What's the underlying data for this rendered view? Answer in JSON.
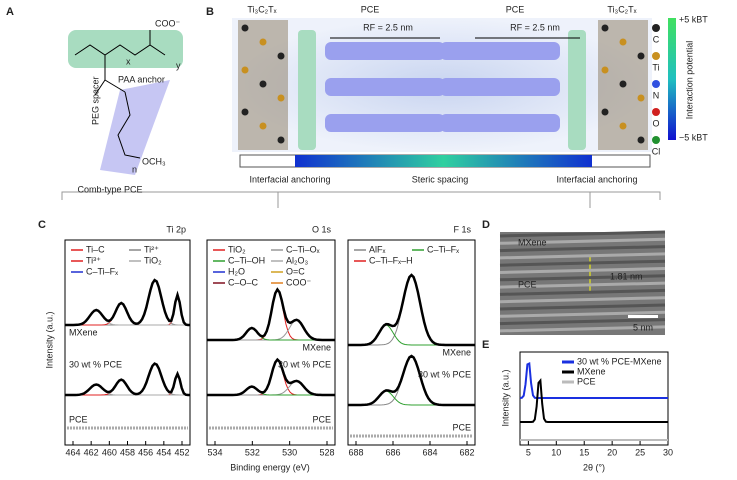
{
  "panel_a": {
    "letter": "A",
    "coo": "COO⁻",
    "x": "x",
    "y": "y",
    "anchor": "PAA anchor",
    "spacer": "PEG spacer",
    "n": "n",
    "och3": "OCH₃",
    "caption": "Comb-type PCE"
  },
  "panel_b": {
    "letter": "B",
    "mxene_left": "Ti₃C₂Tₓ",
    "mxene_right": "Ti₃C₂Tₓ",
    "pce_left": "PCE",
    "pce_right": "PCE",
    "rf_left": "RF = 2.5 nm",
    "rf_right": "RF = 2.5 nm",
    "atoms": [
      "C",
      "Ti",
      "N",
      "O",
      "Cl"
    ],
    "colorbar_title": "Interaction potential",
    "colorbar_top": "+5 kBT",
    "colorbar_bottom": "−5 kBT",
    "regions": [
      "Interfacial anchoring",
      "Steric spacing",
      "Interfacial anchoring"
    ]
  },
  "panel_c": {
    "letter": "C",
    "y_label": "Intensity (a.u.)",
    "x_label": "Binding energy (eV)",
    "plots": [
      {
        "title": "Ti 2p",
        "legend": [
          "Ti–C",
          "Ti²⁺",
          "Ti³⁺",
          "TiO₂",
          "C–Ti–Fₓ"
        ],
        "samples": [
          "MXene",
          "30 wt % PCE",
          "PCE"
        ],
        "xticks": [
          "464",
          "462",
          "460",
          "458",
          "456",
          "454",
          "452"
        ]
      },
      {
        "title": "O 1s",
        "legend": [
          "TiO₂",
          "C–Ti–Oₓ",
          "C–Ti–OH",
          "Al₂O₃",
          "H₂O",
          "O=C",
          "C–O–C",
          "COO⁻"
        ],
        "samples": [
          "MXene",
          "30 wt % PCE",
          "PCE"
        ],
        "xticks": [
          "534",
          "532",
          "530",
          "528"
        ]
      },
      {
        "title": "F 1s",
        "legend": [
          "AlFₓ",
          "C–Ti–Fₓ",
          "C–Ti–Fₓ–H"
        ],
        "samples": [
          "MXene",
          "30 wt % PCE",
          "PCE"
        ],
        "xticks": [
          "688",
          "686",
          "684",
          "682"
        ]
      }
    ]
  },
  "panel_d": {
    "letter": "D",
    "mxene": "MXene",
    "pce": "PCE",
    "spacing": "1.81 nm",
    "scale": "5 nm"
  },
  "panel_e": {
    "letter": "E",
    "y_label": "Intensity (a.u.)",
    "x_label": "2θ (°)",
    "legend": [
      "30 wt % PCE-MXene",
      "MXene",
      "PCE"
    ],
    "xlim": [
      3.5,
      30
    ],
    "xticks": [
      5,
      10,
      15,
      20,
      25,
      30
    ]
  }
}
